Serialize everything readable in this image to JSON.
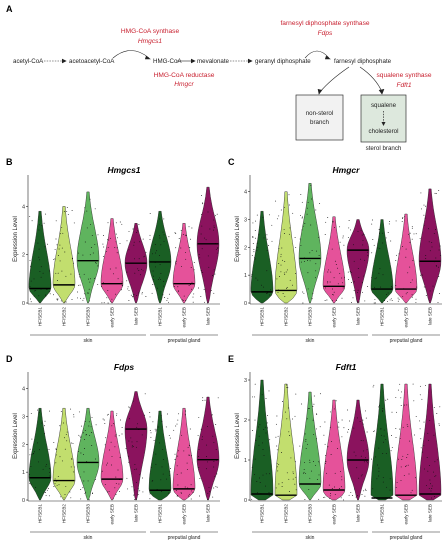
{
  "figure": {
    "panel_labels": [
      "A",
      "B",
      "C",
      "D",
      "E"
    ],
    "pathway": {
      "nodes": [
        "acetyl-CoA",
        "acetoacetyl-CoA",
        "HMG-CoA",
        "mevalonate",
        "geranyl diphosphate",
        "farnesyl diphosphate"
      ],
      "enzymes": [
        {
          "name": "HMG-CoA synthase",
          "gene": "Hmgcs1"
        },
        {
          "name": "HMG-CoA reductase",
          "gene": "Hmgcr"
        },
        {
          "name": "farnesyl diphosphate synthase",
          "gene": "Fdps"
        },
        {
          "name": "squalene synthase",
          "gene": "Fdft1"
        }
      ],
      "branches": {
        "non_sterol": "non-sterol branch",
        "squalene": "squalene",
        "cholesterol": "cholesterol",
        "sterol": "sterol branch"
      }
    },
    "colors": {
      "enzyme_text": "#c8202f",
      "branch_box": "#dde8dd",
      "non_sterol_box": "#f2f2f2"
    }
  },
  "chart_data": [
    {
      "type": "violin",
      "title": "Hmgcs1",
      "ylabel": "Expression Level",
      "yticks": [
        0,
        2,
        4
      ],
      "ylim": [
        0,
        5.3
      ],
      "categories": [
        "HF/SEB1",
        "HF/SEB2",
        "HF/SEB3",
        "early SEB",
        "late SEB",
        "HF/SEB1",
        "early SEB",
        "late SEB"
      ],
      "groups": [
        {
          "label": "skin",
          "count": 5
        },
        {
          "label": "preputial gland",
          "count": 3
        }
      ],
      "medians": [
        0.6,
        0.75,
        1.75,
        0.8,
        1.65,
        1.7,
        0.8,
        2.45
      ],
      "max": [
        3.8,
        4.0,
        4.6,
        3.5,
        3.3,
        3.8,
        3.3,
        4.8
      ]
    },
    {
      "type": "violin",
      "title": "Hmgcr",
      "ylabel": "Expression Level",
      "yticks": [
        0,
        1,
        2,
        3,
        4
      ],
      "ylim": [
        0,
        4.6
      ],
      "categories": [
        "HF/SEB1",
        "HF/SEB2",
        "HF/SEB3",
        "early SEB",
        "late SEB",
        "HF/SEB1",
        "early SEB",
        "late SEB"
      ],
      "groups": [
        {
          "label": "skin",
          "count": 5
        },
        {
          "label": "preputial gland",
          "count": 3
        }
      ],
      "medians": [
        0.4,
        0.45,
        1.6,
        0.6,
        1.9,
        0.5,
        0.5,
        1.5
      ],
      "max": [
        3.3,
        4.0,
        4.3,
        3.1,
        3.0,
        3.0,
        3.2,
        4.1
      ]
    },
    {
      "type": "violin",
      "title": "Fdps",
      "ylabel": "Expression Level",
      "yticks": [
        0,
        1,
        2,
        3,
        4
      ],
      "ylim": [
        0,
        4.6
      ],
      "categories": [
        "HF/SEB1",
        "HF/SEB2",
        "HF/SEB3",
        "early SEB",
        "late SEB",
        "HF/SEB1",
        "early SEB",
        "late SEB"
      ],
      "groups": [
        {
          "label": "skin",
          "count": 5
        },
        {
          "label": "preputial gland",
          "count": 3
        }
      ],
      "medians": [
        0.8,
        0.7,
        1.35,
        0.75,
        2.55,
        0.35,
        0.4,
        1.45
      ],
      "max": [
        3.3,
        3.3,
        3.3,
        3.2,
        3.9,
        3.2,
        3.3,
        3.7
      ]
    },
    {
      "type": "violin",
      "title": "Fdft1",
      "ylabel": "Expression Level",
      "yticks": [
        0,
        1,
        2,
        3
      ],
      "ylim": [
        0,
        3.2
      ],
      "categories": [
        "HF/SEB1",
        "HF/SEB2",
        "HF/SEB3",
        "early SEB",
        "late SEB",
        "HF/SEB1",
        "early SEB",
        "late SEB"
      ],
      "groups": [
        {
          "label": "skin",
          "count": 5
        },
        {
          "label": "preputial gland",
          "count": 3
        }
      ],
      "medians": [
        0.15,
        0.12,
        0.4,
        0.25,
        1.0,
        0.05,
        0.12,
        0.15
      ],
      "max": [
        3.0,
        2.9,
        2.7,
        2.5,
        2.5,
        2.9,
        2.9,
        2.9
      ]
    }
  ],
  "violin_colors": [
    "#1a5f24",
    "#c2de6e",
    "#5fb45e",
    "#e5529a",
    "#8b135e",
    "#1a5f24",
    "#e5529a",
    "#8b135e"
  ]
}
